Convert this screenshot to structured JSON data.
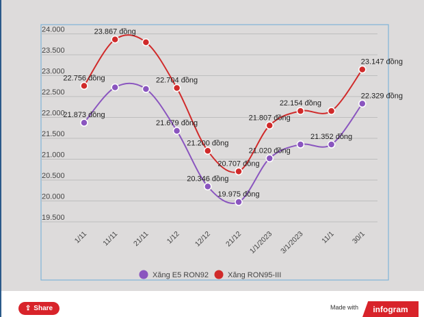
{
  "chart_data": {
    "type": "line",
    "title": "",
    "xlabel": "",
    "ylabel": "",
    "ylim": [
      19500,
      24000
    ],
    "yticks": [
      "19.500",
      "20.000",
      "20.500",
      "21.000",
      "21.500",
      "22.000",
      "22.500",
      "23.000",
      "23.500",
      "24.000"
    ],
    "ytick_values": [
      19500,
      20000,
      20500,
      21000,
      21500,
      22000,
      22500,
      23000,
      23500,
      24000
    ],
    "categories": [
      "1/11",
      "11/11",
      "21/11",
      "1/12",
      "12/12",
      "21/12",
      "1/1/2023",
      "3/1/2023",
      "11/1",
      "30/1"
    ],
    "grid": true,
    "legend_position": "bottom",
    "series": [
      {
        "name": "Xăng E5 RON92",
        "color": "#8a55bf",
        "values": [
          21873,
          22720,
          22680,
          21679,
          20346,
          19975,
          21020,
          21352,
          21352,
          22329
        ],
        "labels": [
          "21.873 đồng",
          "",
          "",
          "21.679 đồng",
          "20.346 đồng",
          "19.975 đồng",
          "21.020 đồng",
          "",
          "21.352 đồng",
          "22.329 đồng"
        ]
      },
      {
        "name": "Xăng RON95-III",
        "color": "#d02a2a",
        "values": [
          22756,
          23867,
          23800,
          22704,
          21200,
          20707,
          21807,
          22154,
          22154,
          23147
        ],
        "labels": [
          "22.756 đồng",
          "23.867 đồng",
          "",
          "22.704 đồng",
          "21.200 đồng",
          "20.707 đồng",
          "21.807 đồng",
          "22.154 đồng",
          "",
          "23.147 đồng"
        ]
      }
    ]
  },
  "footer": {
    "share_label": "Share",
    "made_with": "Made with",
    "brand": "infogram"
  },
  "colors": {
    "accent": "#d8232a"
  }
}
